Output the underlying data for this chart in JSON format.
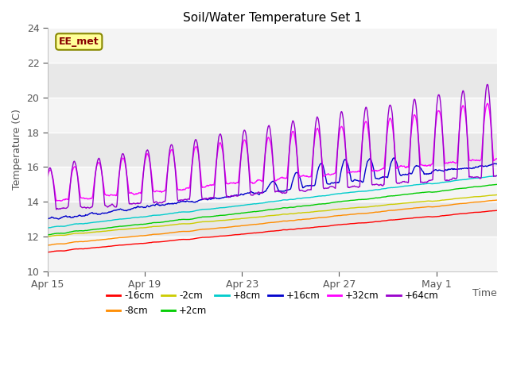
{
  "title": "Soil/Water Temperature Set 1",
  "ylabel": "Temperature (C)",
  "xlabel": "Time",
  "ylim": [
    10,
    24
  ],
  "yticks": [
    10,
    12,
    14,
    16,
    18,
    20,
    22,
    24
  ],
  "background_color": "#ffffff",
  "plot_bg_color": "#e8e8e8",
  "grid_color": "#ffffff",
  "series": [
    {
      "label": "-16cm",
      "color": "#ff0000"
    },
    {
      "label": "-8cm",
      "color": "#ff8c00"
    },
    {
      "label": "-2cm",
      "color": "#cccc00"
    },
    {
      "label": "+2cm",
      "color": "#00cc00"
    },
    {
      "label": "+8cm",
      "color": "#00cccc"
    },
    {
      "label": "+16cm",
      "color": "#0000cc"
    },
    {
      "label": "+32cm",
      "color": "#ff00ff"
    },
    {
      "label": "+64cm",
      "color": "#9900cc"
    }
  ],
  "watermark": "EE_met",
  "watermark_bg": "#ffff99",
  "watermark_border": "#888800",
  "watermark_text_color": "#880000",
  "xtick_labels": [
    "Apr 15",
    "Apr 19",
    "Apr 23",
    "Apr 27",
    "May 1"
  ],
  "xtick_positions": [
    0,
    4,
    8,
    12,
    16
  ],
  "figsize": [
    6.4,
    4.8
  ],
  "dpi": 100
}
